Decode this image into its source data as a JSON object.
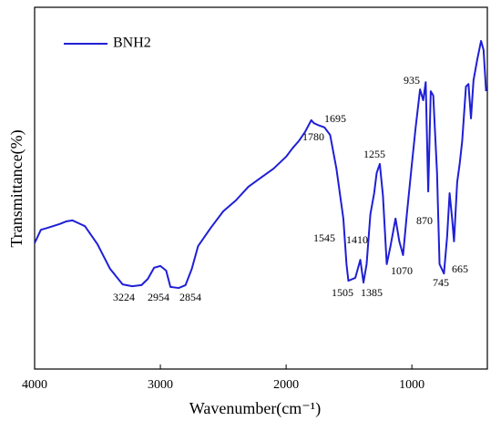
{
  "chart_data": {
    "type": "line",
    "xlabel": "Wavenumber(cm⁻¹)",
    "ylabel": "Transmittance(%)",
    "xlim": [
      4000,
      400
    ],
    "xticks": [
      4000,
      3000,
      2000,
      1000
    ],
    "ylim": [
      0,
      100
    ],
    "legend": "upper left",
    "series": [
      {
        "name": "BNH2",
        "color": "#1f1fd6",
        "x": [
          4000,
          3950,
          3900,
          3800,
          3750,
          3700,
          3650,
          3600,
          3500,
          3400,
          3300,
          3224,
          3150,
          3100,
          3050,
          3000,
          2954,
          2920,
          2854,
          2800,
          2750,
          2700,
          2600,
          2500,
          2400,
          2300,
          2200,
          2100,
          2000,
          1950,
          1900,
          1850,
          1800,
          1780,
          1750,
          1695,
          1650,
          1600,
          1545,
          1520,
          1505,
          1450,
          1410,
          1385,
          1360,
          1330,
          1300,
          1280,
          1255,
          1230,
          1200,
          1170,
          1130,
          1100,
          1070,
          1040,
          1000,
          970,
          935,
          910,
          890,
          870,
          850,
          830,
          800,
          780,
          745,
          720,
          700,
          680,
          665,
          640,
          620,
          600,
          570,
          550,
          530,
          510,
          480,
          450,
          430,
          410
        ],
        "values": [
          34.8,
          38.5,
          39.0,
          40.1,
          40.8,
          41.1,
          40.3,
          39.5,
          34.5,
          27.7,
          23.4,
          22.9,
          23.2,
          24.9,
          28.0,
          28.5,
          27.2,
          22.7,
          22.4,
          23.2,
          27.7,
          34.0,
          39.0,
          43.6,
          46.6,
          50.4,
          52.9,
          55.4,
          58.7,
          61.0,
          63.0,
          65.5,
          68.8,
          68.0,
          67.5,
          66.8,
          64.7,
          55.4,
          41.6,
          29.0,
          24.4,
          25.2,
          30.2,
          23.9,
          29.0,
          42.8,
          48.6,
          54.2,
          56.7,
          47.9,
          29.0,
          34.0,
          41.6,
          35.3,
          31.5,
          42.8,
          56.7,
          66.8,
          77.3,
          74.3,
          79.3,
          49.1,
          76.8,
          75.6,
          54.2,
          29.0,
          26.4,
          36.5,
          48.6,
          41.6,
          35.3,
          51.6,
          56.7,
          63.0,
          78.1,
          78.8,
          69.3,
          79.8,
          85.6,
          90.7,
          88.2,
          76.8
        ]
      }
    ],
    "annotations": [
      "3224",
      "2954",
      "2854",
      "1780",
      "1695",
      "1545",
      "1410",
      "1505",
      "1385",
      "1255",
      "1070",
      "935",
      "870",
      "745",
      "665"
    ]
  }
}
